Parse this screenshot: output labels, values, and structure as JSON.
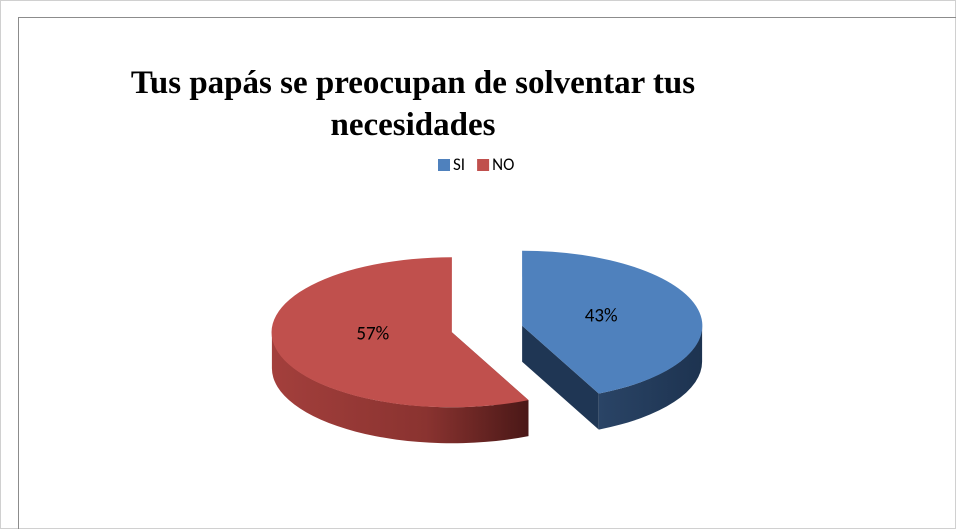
{
  "chart_data": {
    "type": "pie",
    "title": "Tus papás se preocupan de solventar tus necesidades",
    "categories": [
      "SI",
      "NO"
    ],
    "values": [
      43,
      57
    ],
    "value_labels": [
      "43%",
      "57%"
    ],
    "colors": [
      "#4f81bd",
      "#c0504d"
    ],
    "legend": "top"
  }
}
